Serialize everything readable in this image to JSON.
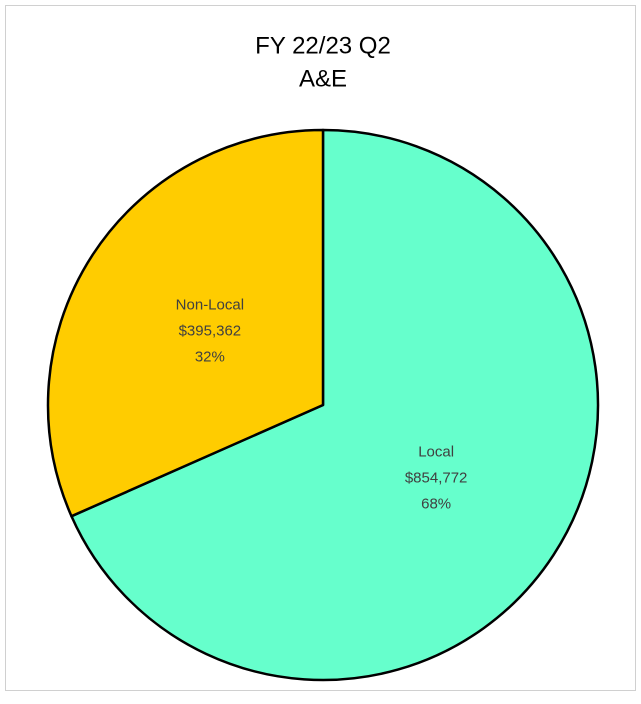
{
  "chart_data": {
    "type": "pie",
    "title": "FY 22/23 Q2",
    "subtitle": "A&E",
    "categories": [
      "Local",
      "Non-Local"
    ],
    "values": [
      854772,
      395362
    ],
    "value_labels": [
      "$854,772",
      "$395,362"
    ],
    "percent_labels": [
      "68%",
      "32%"
    ],
    "colors": [
      "#66ffcc",
      "#ffcc00"
    ]
  }
}
